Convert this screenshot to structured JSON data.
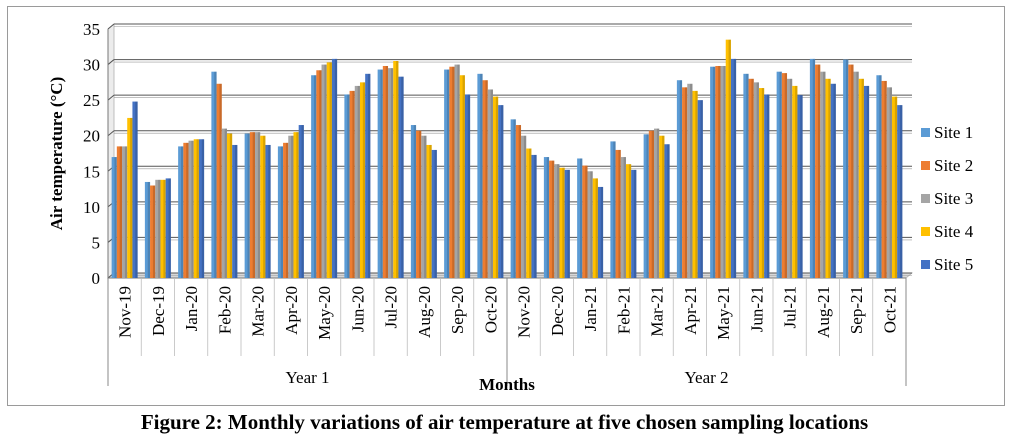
{
  "chart_data": {
    "type": "bar",
    "title": "",
    "ylabel": "Air temperature (°C)",
    "xlabel": "Months",
    "ylim": [
      0,
      35
    ],
    "yticks": [
      0,
      5,
      10,
      15,
      20,
      25,
      30,
      35
    ],
    "grid": true,
    "legend_position": "right",
    "categories": [
      "Nov-19",
      "Dec-19",
      "Jan-20",
      "Feb-20",
      "Mar-20",
      "Apr-20",
      "May-20",
      "Jun-20",
      "Jul-20",
      "Aug-20",
      "Sep-20",
      "Oct-20",
      "Nov-20",
      "Dec-20",
      "Jan-21",
      "Feb-21",
      "Mar-21",
      "Apr-21",
      "May-21",
      "Jun-21",
      "Jul-21",
      "Aug-21",
      "Sep-21",
      "Oct-21"
    ],
    "groups": [
      {
        "label": "Year 1",
        "start": 0,
        "end": 11
      },
      {
        "label": "Year 2",
        "start": 12,
        "end": 23
      }
    ],
    "series": [
      {
        "name": "Site 1",
        "color": "#5B9BD5",
        "values": [
          17.0,
          13.5,
          18.5,
          29.0,
          20.3,
          18.5,
          28.5,
          25.8,
          29.3,
          21.5,
          29.3,
          28.7,
          22.3,
          17.0,
          16.8,
          19.2,
          20.2,
          27.8,
          29.7,
          28.7,
          29.0,
          30.8,
          30.7,
          28.5
        ]
      },
      {
        "name": "Site 2",
        "color": "#ED7D31",
        "values": [
          18.5,
          13.0,
          19.0,
          27.3,
          20.5,
          19.0,
          29.2,
          26.3,
          29.8,
          20.7,
          29.7,
          27.8,
          21.5,
          16.5,
          15.8,
          18.0,
          20.7,
          26.8,
          29.8,
          28.0,
          28.8,
          30.0,
          30.0,
          27.7
        ]
      },
      {
        "name": "Site 3",
        "color": "#A5A5A5",
        "values": [
          18.5,
          13.8,
          19.3,
          21.0,
          20.5,
          20.0,
          30.0,
          27.0,
          29.5,
          20.0,
          30.0,
          26.5,
          20.0,
          16.0,
          15.0,
          17.0,
          21.0,
          27.3,
          29.8,
          27.5,
          28.0,
          29.0,
          29.0,
          26.8
        ]
      },
      {
        "name": "Site 4",
        "color": "#FFC000",
        "values": [
          22.5,
          13.8,
          19.5,
          20.3,
          20.0,
          20.5,
          30.3,
          27.5,
          30.5,
          18.7,
          28.5,
          25.5,
          18.2,
          15.5,
          14.0,
          16.0,
          20.0,
          26.3,
          33.5,
          26.7,
          27.0,
          28.0,
          28.0,
          25.5
        ]
      },
      {
        "name": "Site 5",
        "color": "#4472C4",
        "values": [
          24.8,
          14.0,
          19.5,
          18.7,
          18.7,
          21.5,
          30.8,
          28.7,
          28.3,
          18.0,
          25.8,
          24.3,
          17.3,
          15.2,
          12.8,
          15.2,
          18.8,
          25.0,
          30.8,
          25.8,
          25.7,
          27.3,
          27.0,
          24.3
        ]
      }
    ]
  },
  "caption": "Figure 2: Monthly variations of air temperature at five chosen sampling locations"
}
